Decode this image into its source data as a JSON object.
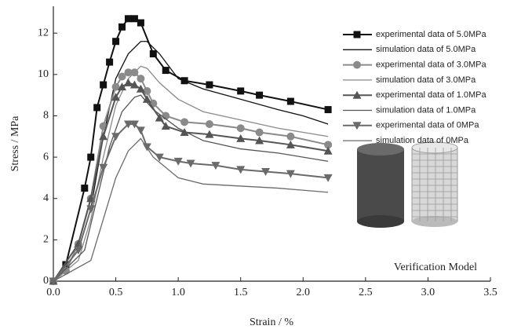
{
  "chart_data": {
    "type": "line",
    "x_label": "Strain / %",
    "y_label": "Stress / MPa",
    "annotation": "Verification Model",
    "xlim": [
      0,
      3.5
    ],
    "ylim": [
      0,
      13.3
    ],
    "xticks": [
      {
        "value": 0,
        "label": "0.0"
      },
      {
        "value": 0.5,
        "label": "0.5"
      },
      {
        "value": 1,
        "label": "1.0"
      },
      {
        "value": 1.5,
        "label": "1.5"
      },
      {
        "value": 2,
        "label": "2.0"
      },
      {
        "value": 2.5,
        "label": "2.5"
      },
      {
        "value": 3,
        "label": "3.0"
      },
      {
        "value": 3.5,
        "label": "3.5"
      }
    ],
    "yticks": [
      0,
      2,
      4,
      6,
      8,
      10,
      12
    ],
    "series": [
      {
        "name": "experimental data of 5.0MPa",
        "color": "#111111",
        "marker": "square",
        "x": [
          0,
          0.1,
          0.25,
          0.3,
          0.35,
          0.4,
          0.45,
          0.5,
          0.55,
          0.6,
          0.65,
          0.7,
          0.8,
          0.9,
          1.05,
          1.25,
          1.5,
          1.65,
          1.9,
          2.2
        ],
        "values": [
          0,
          0.8,
          4.5,
          6.0,
          8.4,
          9.5,
          10.6,
          11.6,
          12.3,
          12.7,
          12.7,
          12.5,
          11.0,
          10.2,
          9.7,
          9.5,
          9.2,
          9.0,
          8.7,
          8.3
        ]
      },
      {
        "name": "simulation data of 5.0MPa",
        "color": "#111111",
        "marker": null,
        "x": [
          0,
          0.2,
          0.3,
          0.4,
          0.5,
          0.6,
          0.7,
          0.75,
          0.85,
          1.0,
          1.2,
          1.5,
          1.8,
          2.0,
          2.2
        ],
        "values": [
          0,
          1.5,
          3.5,
          7.0,
          9.8,
          11.0,
          11.6,
          11.6,
          11.0,
          9.8,
          9.3,
          8.8,
          8.3,
          8.0,
          7.6
        ]
      },
      {
        "name": "experimental data of 3.0MPa",
        "color": "#8a8a8a",
        "marker": "circle",
        "x": [
          0,
          0.1,
          0.2,
          0.3,
          0.4,
          0.5,
          0.55,
          0.6,
          0.65,
          0.7,
          0.75,
          0.8,
          0.9,
          1.05,
          1.25,
          1.5,
          1.65,
          1.9,
          2.2
        ],
        "values": [
          0,
          0.5,
          1.8,
          4.0,
          7.5,
          9.4,
          9.9,
          10.1,
          10.1,
          9.8,
          9.2,
          8.6,
          8.0,
          7.7,
          7.6,
          7.4,
          7.2,
          7.0,
          6.6
        ]
      },
      {
        "name": "simulation data of 3.0MPa",
        "color": "#8a8a8a",
        "marker": null,
        "x": [
          0,
          0.2,
          0.3,
          0.4,
          0.5,
          0.6,
          0.7,
          0.75,
          0.85,
          1.0,
          1.2,
          1.5,
          1.8,
          2.2
        ],
        "values": [
          0,
          1.0,
          3.0,
          6.0,
          8.5,
          9.8,
          10.4,
          10.3,
          9.6,
          8.8,
          8.2,
          7.8,
          7.4,
          7.0
        ]
      },
      {
        "name": "experimental data of 1.0MPa",
        "color": "#555555",
        "marker": "triangle",
        "x": [
          0,
          0.2,
          0.3,
          0.4,
          0.5,
          0.55,
          0.6,
          0.65,
          0.7,
          0.75,
          0.85,
          0.9,
          1.05,
          1.25,
          1.5,
          1.65,
          1.9,
          2.2
        ],
        "values": [
          0,
          1.8,
          4.0,
          7.0,
          8.9,
          9.4,
          9.6,
          9.5,
          9.3,
          8.8,
          7.9,
          7.5,
          7.2,
          7.1,
          6.9,
          6.8,
          6.6,
          6.3
        ]
      },
      {
        "name": "simulation data of 1.0MPa",
        "color": "#555555",
        "marker": null,
        "x": [
          0,
          0.25,
          0.35,
          0.45,
          0.55,
          0.65,
          0.7,
          0.8,
          1.0,
          1.2,
          1.5,
          1.8,
          2.2
        ],
        "values": [
          0,
          1.5,
          4.0,
          6.5,
          8.2,
          8.9,
          9.0,
          8.3,
          7.4,
          6.8,
          6.4,
          6.2,
          5.8
        ]
      },
      {
        "name": "experimental data of 0MPa",
        "color": "#6a6a6a",
        "marker": "triangle-down",
        "x": [
          0,
          0.2,
          0.3,
          0.4,
          0.5,
          0.6,
          0.65,
          0.7,
          0.75,
          0.85,
          1.0,
          1.1,
          1.3,
          1.5,
          1.7,
          1.9,
          2.2
        ],
        "values": [
          0,
          1.5,
          3.5,
          5.5,
          7.0,
          7.6,
          7.6,
          7.3,
          6.5,
          6.0,
          5.8,
          5.7,
          5.6,
          5.4,
          5.3,
          5.2,
          5.0
        ]
      },
      {
        "name": "simulation data of 0MPa",
        "color": "#6a6a6a",
        "marker": null,
        "x": [
          0,
          0.3,
          0.4,
          0.5,
          0.6,
          0.7,
          0.8,
          1.0,
          1.2,
          1.5,
          1.8,
          2.2
        ],
        "values": [
          0,
          1.0,
          3.0,
          5.0,
          6.3,
          6.9,
          6.0,
          5.0,
          4.7,
          4.6,
          4.5,
          4.3
        ]
      }
    ]
  }
}
